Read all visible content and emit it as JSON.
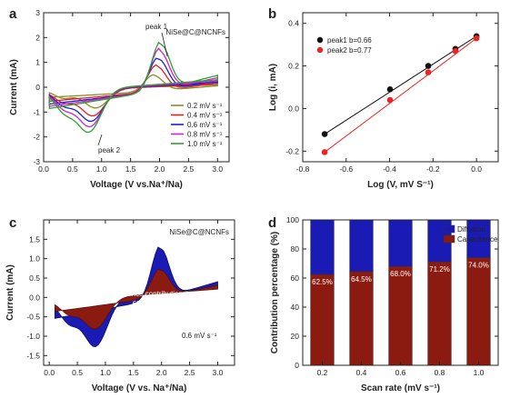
{
  "chart_data": [
    {
      "panel": "a",
      "type": "line",
      "xlabel": "Voltage (V vs.Na⁺/Na)",
      "ylabel": "Current (mA)",
      "xlim": [
        0,
        3.2
      ],
      "ylim": [
        -3,
        3
      ],
      "xticks": [
        0.0,
        0.5,
        1.0,
        1.5,
        2.0,
        2.5,
        3.0
      ],
      "yticks": [
        -3,
        -2,
        -1,
        0,
        1,
        2,
        3
      ],
      "tick_labels_x": [
        "0.0",
        "0.5",
        "1.0",
        "1.5",
        "2.0",
        "2.5",
        "3.0"
      ],
      "tick_labels_y": [
        "-3",
        "-2",
        "-1",
        "0",
        "1",
        "2",
        "3"
      ],
      "title": "NiSe@C@NCNFs",
      "annotations": [
        "peak 1",
        "peak 2"
      ],
      "legend_position": "bottom-right",
      "series": [
        {
          "name": "0.2 mV s⁻¹",
          "color": "#8b8b2a",
          "peak_anodic": [
            1.9,
            0.75
          ],
          "peak_cathodic": [
            0.9,
            -0.9
          ],
          "end_top": 0.2,
          "end_bot": 0.1,
          "start": -0.9
        },
        {
          "name": "0.4 mV s⁻¹",
          "color": "#e02020",
          "peak_anodic": [
            1.95,
            1.2
          ],
          "peak_cathodic": [
            0.85,
            -1.25
          ],
          "end_top": 0.3,
          "end_bot": 0.15,
          "start": -1.25
        },
        {
          "name": "0.6 mV s⁻¹",
          "color": "#1e1ed2",
          "peak_anodic": [
            1.98,
            1.55
          ],
          "peak_cathodic": [
            0.82,
            -1.5
          ],
          "end_top": 0.4,
          "end_bot": 0.2,
          "start": -1.5
        },
        {
          "name": "0.8 mV s⁻¹",
          "color": "#d020d0",
          "peak_anodic": [
            2.0,
            1.9
          ],
          "peak_cathodic": [
            0.8,
            -1.75
          ],
          "end_top": 0.5,
          "end_bot": 0.25,
          "start": -1.7
        },
        {
          "name": "1.0 mV s⁻¹",
          "color": "#30a030",
          "peak_anodic": [
            2.02,
            2.2
          ],
          "peak_cathodic": [
            0.78,
            -2.0
          ],
          "end_top": 0.6,
          "end_bot": 0.3,
          "start": -1.9
        }
      ]
    },
    {
      "panel": "b",
      "type": "scatter",
      "xlabel": "Log (V, mV S⁻¹)",
      "ylabel": "Log (i, mA)",
      "xlim": [
        -0.8,
        0.1
      ],
      "ylim": [
        -0.25,
        0.45
      ],
      "xticks": [
        -0.8,
        -0.6,
        -0.4,
        -0.2,
        0.0
      ],
      "yticks": [
        -0.2,
        0.0,
        0.2,
        0.4
      ],
      "tick_labels_x": [
        "-0.8",
        "-0.6",
        "-0.4",
        "-0.2",
        "0.0"
      ],
      "tick_labels_y": [
        "-0.2",
        "0.0",
        "0.2",
        "0.4"
      ],
      "legend_position": "top-left",
      "series": [
        {
          "name": "peak1 b=0.66",
          "color": "#111111",
          "x": [
            -0.699,
            -0.398,
            -0.222,
            -0.097,
            0.0
          ],
          "y": [
            -0.12,
            0.09,
            0.2,
            0.28,
            0.34
          ]
        },
        {
          "name": "peak2 b=0.77",
          "color": "#ee2222",
          "x": [
            -0.699,
            -0.398,
            -0.222,
            -0.097,
            0.0
          ],
          "y": [
            -0.205,
            0.04,
            0.17,
            0.27,
            0.33
          ]
        }
      ]
    },
    {
      "panel": "c",
      "type": "area",
      "xlabel": "Voltage (V vs. Na⁺/Na)",
      "ylabel": "Current (mA)",
      "xlim": [
        -0.1,
        3.3
      ],
      "ylim": [
        -1.75,
        2.0
      ],
      "xticks": [
        0.0,
        0.5,
        1.0,
        1.5,
        2.0,
        2.5,
        3.0
      ],
      "yticks": [
        -1.5,
        -1.0,
        -0.5,
        0.0,
        0.5,
        1.0,
        1.5
      ],
      "tick_labels_x": [
        "0.0",
        "0.5",
        "1.0",
        "1.5",
        "2.0",
        "2.5",
        "3.0"
      ],
      "tick_labels_y": [
        "-1.5",
        "-1.0",
        "-0.5",
        "0.0",
        "0.5",
        "1.0",
        "1.5"
      ],
      "title": "NiSe@C@NCNFs",
      "annotation": "Capacitance contribution",
      "annotation_value": "68.0%",
      "rate_label": "0.6 mV s⁻¹",
      "colors": {
        "total": "#1a1ab5",
        "capacitive": "#8b1a10"
      },
      "series": [
        {
          "name": "Total",
          "peak_anodic": [
            1.98,
            1.55
          ],
          "peak_cathodic": [
            0.82,
            -1.45
          ]
        },
        {
          "name": "Capacitive",
          "fraction": 0.68
        }
      ]
    },
    {
      "panel": "d",
      "type": "bar",
      "xlabel": "Scan rate (mV s⁻¹)",
      "ylabel": "Contribution percentage (%)",
      "categories": [
        "0.2",
        "0.4",
        "0.6",
        "0.8",
        "1.0"
      ],
      "ylim": [
        0,
        100
      ],
      "yticks": [
        0,
        20,
        40,
        60,
        80,
        100
      ],
      "tick_labels_y": [
        "0",
        "20",
        "40",
        "60",
        "80",
        "100"
      ],
      "legend_position": "top-right",
      "series": [
        {
          "name": "Capacitance",
          "color": "#8b1a10",
          "values": [
            62.5,
            64.5,
            68.0,
            71.2,
            74.0
          ]
        },
        {
          "name": "Diffusion",
          "color": "#1a1ab5",
          "values": [
            37.5,
            35.5,
            32.0,
            28.8,
            26.0
          ]
        }
      ],
      "data_labels": [
        "62.5%",
        "64.5%",
        "68.0%",
        "71.2%",
        "74.0%"
      ]
    }
  ],
  "panel_letters": [
    "a",
    "b",
    "c",
    "d"
  ]
}
